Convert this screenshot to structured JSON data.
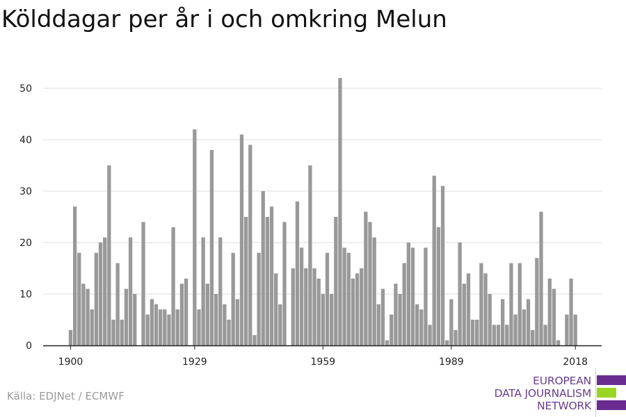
{
  "title": "Kölddagar per år i och omkring Melun",
  "source": "Källa: EDJNet / ECMWF",
  "logo": {
    "line1": "EUROPEAN",
    "line2": "DATA JOURNALISM",
    "line3": "NETWORK",
    "purple": "#6a2c91",
    "green": "#99d523"
  },
  "colors": {
    "bar": "#999999",
    "grid": "#dddddd",
    "axis": "#222222"
  },
  "chart_data": {
    "type": "bar",
    "title": "Kölddagar per år i och omkring Melun",
    "xlabel": "",
    "ylabel": "",
    "x_start": 1900,
    "x_ticks": [
      1900,
      1929,
      1959,
      1989,
      2018
    ],
    "y_ticks": [
      0,
      10,
      20,
      30,
      40,
      50
    ],
    "ylim": [
      0,
      55
    ],
    "grid": true,
    "values": [
      3,
      27,
      18,
      12,
      11,
      7,
      18,
      20,
      21,
      35,
      5,
      16,
      5,
      11,
      21,
      10,
      0,
      24,
      6,
      9,
      8,
      7,
      7,
      6,
      23,
      7,
      12,
      13,
      0,
      42,
      7,
      21,
      12,
      38,
      10,
      21,
      8,
      5,
      18,
      9,
      41,
      25,
      39,
      2,
      18,
      30,
      25,
      27,
      14,
      8,
      24,
      0,
      15,
      28,
      19,
      15,
      35,
      15,
      13,
      10,
      18,
      10,
      25,
      52,
      19,
      18,
      13,
      14,
      15,
      26,
      24,
      21,
      8,
      11,
      1,
      6,
      12,
      10,
      16,
      20,
      19,
      8,
      7,
      19,
      4,
      33,
      23,
      31,
      1,
      9,
      3,
      20,
      12,
      14,
      5,
      5,
      16,
      14,
      10,
      4,
      4,
      9,
      4,
      16,
      6,
      16,
      7,
      9,
      3,
      17,
      26,
      4,
      13,
      11,
      1,
      0,
      6,
      13,
      6
    ]
  }
}
